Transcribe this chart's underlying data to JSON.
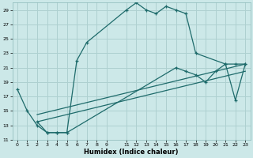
{
  "xlabel": "Humidex (Indice chaleur)",
  "bg_color": "#cce8e8",
  "grid_color": "#aed0d0",
  "line_color": "#1e6b6b",
  "xlim": [
    -0.5,
    23.5
  ],
  "ylim": [
    11,
    30
  ],
  "yticks": [
    11,
    13,
    15,
    17,
    19,
    21,
    23,
    25,
    27,
    29
  ],
  "xtick_vals": [
    0,
    1,
    2,
    3,
    4,
    5,
    6,
    7,
    8,
    9,
    11,
    12,
    13,
    14,
    15,
    16,
    17,
    18,
    19,
    20,
    21,
    22,
    23
  ],
  "xtick_labels": [
    "0",
    "1",
    "2",
    "3",
    "4",
    "5",
    "6",
    "7",
    "8",
    "9",
    "11",
    "12",
    "13",
    "14",
    "15",
    "16",
    "17",
    "18",
    "19",
    "20",
    "21",
    "22",
    "23"
  ],
  "curve1_x": [
    0,
    1,
    2,
    3,
    4,
    5,
    6,
    7,
    11,
    12,
    13,
    14,
    15,
    16,
    17,
    18,
    21,
    22,
    23
  ],
  "curve1_y": [
    18,
    15,
    13,
    12,
    12,
    12,
    22,
    24.5,
    29,
    30,
    29,
    28.5,
    29.5,
    29,
    28.5,
    23,
    21.5,
    16.5,
    21.5
  ],
  "curve2_x": [
    2,
    3,
    4,
    5,
    16,
    17,
    18,
    19,
    20,
    21,
    22,
    23
  ],
  "curve2_y": [
    13.5,
    12,
    12,
    12,
    21,
    20.5,
    20,
    19,
    20.5,
    21.5,
    21.5,
    21.5
  ],
  "line3_x": [
    2,
    23
  ],
  "line3_y": [
    14.5,
    21.5
  ],
  "line4_x": [
    2,
    23
  ],
  "line4_y": [
    13.5,
    20.5
  ]
}
